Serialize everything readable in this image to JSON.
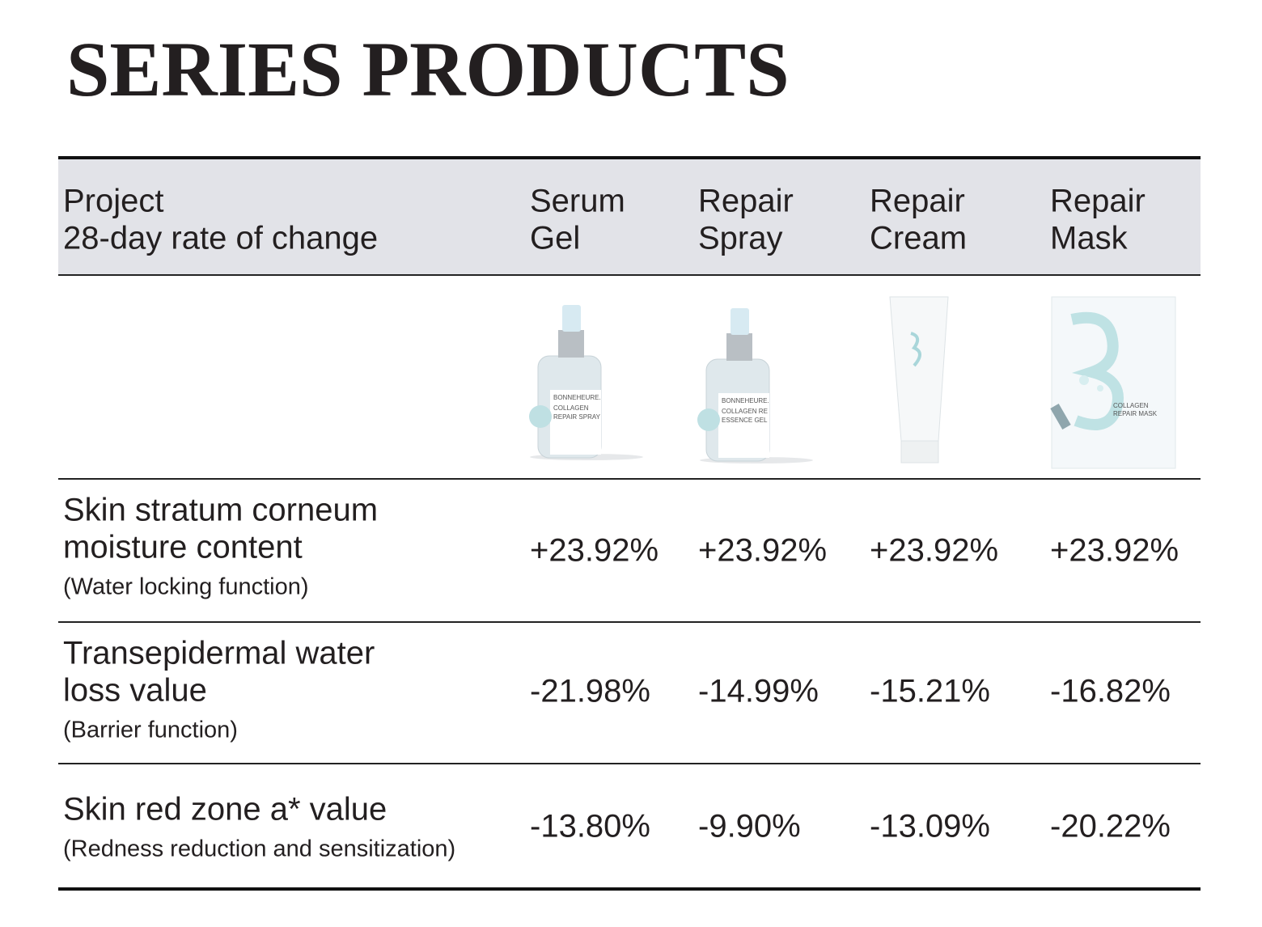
{
  "title": "SERIES PRODUCTS",
  "table": {
    "header": {
      "project": [
        "Project",
        "28-day rate of change"
      ],
      "columns": [
        [
          "Serum",
          "Gel"
        ],
        [
          "Repair",
          "Spray"
        ],
        [
          "Repair",
          "Cream"
        ],
        [
          "Repair",
          "Mask"
        ]
      ]
    },
    "images": [
      {
        "brand": "BONNEHEURE.",
        "name": [
          "COLLAGEN",
          "REPAIR SPRAY"
        ]
      },
      {
        "brand": "BONNEHEURE.",
        "name": [
          "COLLAGEN RE",
          "ESSENCE GEL"
        ]
      },
      {},
      {
        "name": [
          "COLLAGEN",
          "REPAIR MASK"
        ]
      }
    ],
    "rows": [
      {
        "label": [
          "Skin stratum corneum",
          "moisture content"
        ],
        "note": "(Water locking function)",
        "values": [
          "+23.92%",
          "+23.92%",
          "+23.92%",
          "+23.92%"
        ]
      },
      {
        "label": [
          "Transepidermal water",
          "loss value"
        ],
        "note": "(Barrier function)",
        "values": [
          "-21.98%",
          "-14.99%",
          "-15.21%",
          "-16.82%"
        ]
      },
      {
        "label": [
          "Skin red zone a* value"
        ],
        "note": "(Redness reduction and sensitization)",
        "values": [
          "-13.80%",
          "-9.90%",
          "-13.09%",
          "-20.22%"
        ]
      }
    ]
  }
}
